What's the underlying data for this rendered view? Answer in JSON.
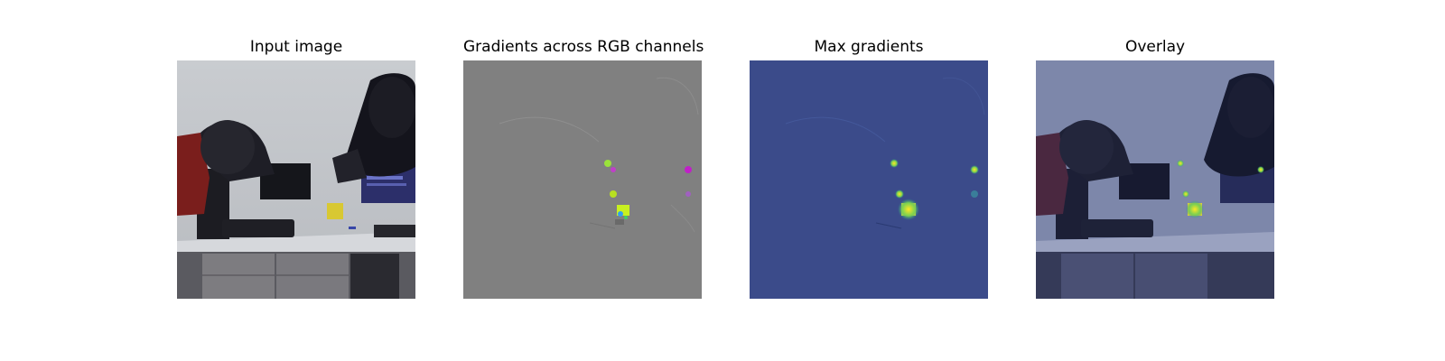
{
  "figure": {
    "panels": [
      {
        "title": "Input image",
        "image": "rgb-photo-two-robot-arms-desk-monitors"
      },
      {
        "title": "Gradients across RGB channels",
        "image": "gray-gradient-map-colored-speckles"
      },
      {
        "title": "Max gradients",
        "image": "blue-heatmap-bright-yellow-cluster"
      },
      {
        "title": "Overlay",
        "image": "heatmap-overlaid-on-input-photo"
      }
    ]
  },
  "colors": {
    "gradient_gray": "#808080",
    "heatmap_base": "#3b4b8a",
    "heatmap_peak": "#fde725",
    "wall": "#c6c8cc",
    "desk": "#d8dade"
  }
}
